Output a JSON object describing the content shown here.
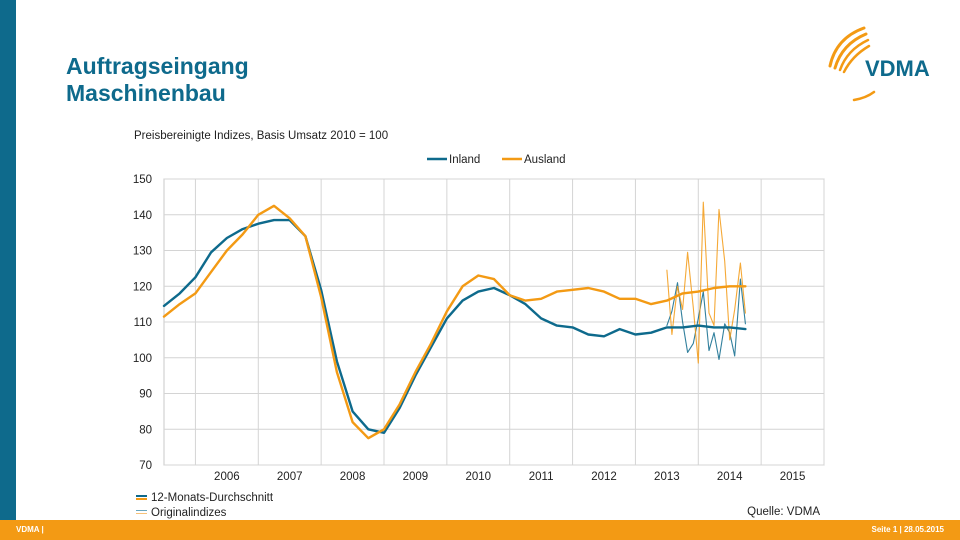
{
  "header": {
    "title_line1": "Auftragseingang",
    "title_line2": "Maschinenbau",
    "logo_text": "VDMA"
  },
  "footer": {
    "left": "VDMA |",
    "right": "Seite 1 | 28.05.2015"
  },
  "source": "Quelle: VDMA",
  "legend_bottom": {
    "smoothed": "12-Monats-Durchschnitt",
    "original": "Originalindizes"
  },
  "colors": {
    "inland": "#0e6a8c",
    "ausland": "#f39a14",
    "brand_blue": "#0e6a8c",
    "brand_orange": "#f39a14"
  },
  "chart_data": {
    "type": "line",
    "title": "Preisbereinigte Indizes, Basis Umsatz 2010 = 100",
    "ylim": [
      70,
      150
    ],
    "yticks": [
      70,
      80,
      90,
      100,
      110,
      120,
      130,
      140,
      150
    ],
    "xlim": [
      2005.5,
      2016.0
    ],
    "xtick_labels": [
      "2006",
      "2007",
      "2008",
      "2009",
      "2010",
      "2011",
      "2012",
      "2013",
      "2014",
      "2015"
    ],
    "grid": true,
    "legend_position": "top-center",
    "series": [
      {
        "name": "Inland",
        "kind": "12-Monats-Durchschnitt",
        "x": [
          2005.5,
          2005.75,
          2006.0,
          2006.25,
          2006.5,
          2006.75,
          2007.0,
          2007.25,
          2007.5,
          2007.75,
          2008.0,
          2008.25,
          2008.5,
          2008.75,
          2009.0,
          2009.25,
          2009.5,
          2009.75,
          2010.0,
          2010.25,
          2010.5,
          2010.75,
          2011.0,
          2011.25,
          2011.5,
          2011.75,
          2012.0,
          2012.25,
          2012.5,
          2012.75,
          2013.0,
          2013.25,
          2013.5,
          2013.75,
          2014.0,
          2014.25,
          2014.5,
          2014.75
        ],
        "values": [
          114.5,
          118,
          122.5,
          129.5,
          133.5,
          136,
          137.5,
          138.5,
          138.5,
          134,
          119,
          99,
          85,
          80,
          79,
          86,
          95,
          103,
          111,
          116,
          118.5,
          119.5,
          117.5,
          115,
          111,
          109,
          108.5,
          106.5,
          106,
          108,
          106.5,
          107,
          108.5,
          108.5,
          109,
          108.5,
          108.5,
          108
        ]
      },
      {
        "name": "Ausland",
        "kind": "12-Monats-Durchschnitt",
        "x": [
          2005.5,
          2005.75,
          2006.0,
          2006.25,
          2006.5,
          2006.75,
          2007.0,
          2007.25,
          2007.5,
          2007.75,
          2008.0,
          2008.25,
          2008.5,
          2008.75,
          2009.0,
          2009.25,
          2009.5,
          2009.75,
          2010.0,
          2010.25,
          2010.5,
          2010.75,
          2011.0,
          2011.25,
          2011.5,
          2011.75,
          2012.0,
          2012.25,
          2012.5,
          2012.75,
          2013.0,
          2013.25,
          2013.5,
          2013.75,
          2014.0,
          2014.25,
          2014.5,
          2014.75
        ],
        "values": [
          111.5,
          115,
          118,
          124,
          130,
          134.5,
          140,
          142.5,
          139,
          134,
          117,
          96,
          82,
          77.5,
          80,
          87,
          96,
          104,
          113,
          120,
          123,
          122,
          117.5,
          116,
          116.5,
          118.5,
          119,
          119.5,
          118.5,
          116.5,
          116.5,
          115,
          116,
          118,
          118.5,
          119.5,
          120,
          120
        ]
      },
      {
        "name": "Inland",
        "kind": "Originalindizes",
        "x": [
          2013.5,
          2013.58,
          2013.67,
          2013.75,
          2013.83,
          2013.92,
          2014.0,
          2014.08,
          2014.17,
          2014.25,
          2014.33,
          2014.42,
          2014.5,
          2014.58,
          2014.67,
          2014.75
        ],
        "values": [
          109,
          113,
          121,
          110,
          101.5,
          104,
          111,
          118.5,
          102,
          107,
          99.5,
          109.5,
          107,
          100.5,
          122,
          109.5
        ]
      },
      {
        "name": "Ausland",
        "kind": "Originalindizes",
        "x": [
          2013.5,
          2013.58,
          2013.67,
          2013.75,
          2013.83,
          2013.92,
          2014.0,
          2014.08,
          2014.17,
          2014.25,
          2014.33,
          2014.42,
          2014.5,
          2014.58,
          2014.67,
          2014.75
        ],
        "values": [
          124.5,
          106.5,
          120,
          113.5,
          129.5,
          114,
          98.5,
          143.5,
          112.5,
          109,
          141.5,
          127,
          105,
          113.5,
          126.5,
          112.5
        ]
      }
    ]
  }
}
